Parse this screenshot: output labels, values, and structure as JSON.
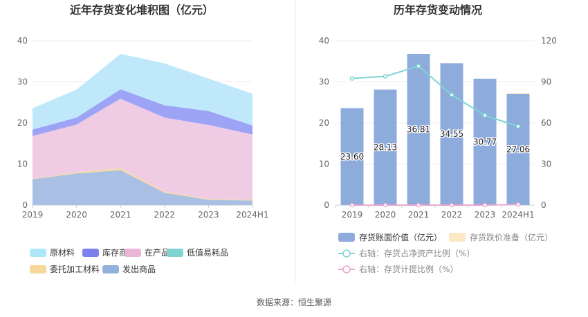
{
  "source_label": "数据来源：恒生聚源",
  "chart_data": [
    {
      "type": "area",
      "title": "近年存货变化堆积图（亿元）",
      "categories": [
        "2019",
        "2020",
        "2021",
        "2022",
        "2023",
        "2024H1"
      ],
      "ylim": [
        0,
        40
      ],
      "yticks": [
        "0",
        "10",
        "20",
        "30",
        "40"
      ],
      "grid": true,
      "series": [
        {
          "name": "发出商品",
          "color": "#a9bfe3",
          "values": [
            6.3,
            7.7,
            8.5,
            3.0,
            1.3,
            1.1
          ]
        },
        {
          "name": "委托加工材料",
          "color": "#f5d9a8",
          "values": [
            0.1,
            0.3,
            0.5,
            0.3,
            0.2,
            0.2
          ]
        },
        {
          "name": "低值易耗品",
          "color": "#8ed8d8",
          "values": [
            0.0,
            0.0,
            0.0,
            0.0,
            0.0,
            0.0
          ]
        },
        {
          "name": "在产品",
          "color": "#efcce3",
          "values": [
            10.4,
            11.6,
            16.9,
            18.0,
            18.0,
            15.9
          ]
        },
        {
          "name": "库存商品",
          "color": "#9ea4f5",
          "values": [
            1.6,
            1.7,
            2.3,
            3.0,
            3.4,
            2.2
          ]
        },
        {
          "name": "原材料",
          "color": "#bfe9fb",
          "values": [
            5.2,
            6.8,
            8.6,
            10.2,
            7.9,
            7.7
          ]
        }
      ],
      "legend": [
        "原材料",
        "库存商品",
        "在产品",
        "低值易耗品",
        "委托加工材料",
        "发出商品"
      ],
      "legend_colors": [
        "#aee6fa",
        "#7b82ee",
        "#eab6d7",
        "#7fd3d3",
        "#f8d79b",
        "#94b1de"
      ],
      "legend_placement": "bottom"
    },
    {
      "type": "bar",
      "title": "历年存货变动情况",
      "categories": [
        "2019",
        "2020",
        "2021",
        "2022",
        "2023",
        "2024H1"
      ],
      "ylim": [
        0,
        40
      ],
      "yticks": [
        "0",
        "10",
        "20",
        "30",
        "40"
      ],
      "y2lim": [
        0,
        120
      ],
      "y2ticks": [
        "0",
        "30",
        "60",
        "90",
        "120"
      ],
      "grid": true,
      "series": [
        {
          "name": "存货账面价值（亿元）",
          "color": "#8eacdb",
          "axis": "left",
          "values": [
            23.6,
            28.13,
            36.81,
            34.55,
            30.77,
            27.06
          ]
        },
        {
          "name": "存货跌价准备（亿元）",
          "color": "#fbe8c4",
          "axis": "left",
          "values": [
            0,
            0,
            0,
            0,
            0,
            0.15
          ]
        },
        {
          "name": "右轴：存货占净资产比例（%）",
          "color": "#7fd4d4",
          "axis": "right",
          "values": [
            92.5,
            94.0,
            101.5,
            80.5,
            65.5,
            57.5
          ]
        },
        {
          "name": "右轴：存货计提比例（%）",
          "color": "#e9a7cf",
          "axis": "right",
          "values": [
            0,
            0,
            0,
            0,
            0,
            0.5
          ]
        }
      ],
      "bar_labels": [
        "23.60",
        "28.13",
        "36.81",
        "34.55",
        "30.77",
        "27.06"
      ],
      "legend_placement": "bottom"
    }
  ]
}
